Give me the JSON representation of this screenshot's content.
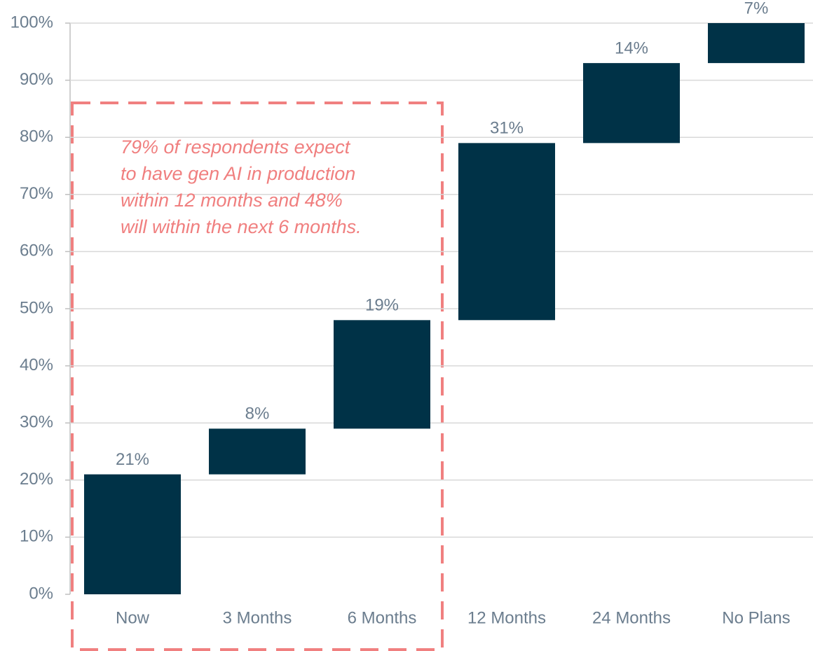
{
  "chart_data": {
    "type": "waterfall",
    "categories": [
      "Now",
      "3 Months",
      "6 Months",
      "12 Months",
      "24 Months",
      "No Plans"
    ],
    "values": [
      21,
      8,
      19,
      31,
      14,
      7
    ],
    "value_labels": [
      "21%",
      "8%",
      "19%",
      "31%",
      "14%",
      "7%"
    ],
    "color": "#003247",
    "ylim": [
      0,
      100
    ],
    "yticks": [
      {
        "value": 0,
        "label": "0%"
      },
      {
        "value": 10,
        "label": "10%"
      },
      {
        "value": 20,
        "label": "20%"
      },
      {
        "value": 30,
        "label": "30%"
      },
      {
        "value": 40,
        "label": "40%"
      },
      {
        "value": 50,
        "label": "50%"
      },
      {
        "value": 60,
        "label": "60%"
      },
      {
        "value": 70,
        "label": "70%"
      },
      {
        "value": 80,
        "label": "80%"
      },
      {
        "value": 90,
        "label": "90%"
      },
      {
        "value": 100,
        "label": "100%"
      }
    ],
    "grid": true,
    "annotation": [
      "79% of respondents expect",
      "to have gen AI in production",
      "within 12 months and 48%",
      "will within the next 6 months."
    ]
  }
}
